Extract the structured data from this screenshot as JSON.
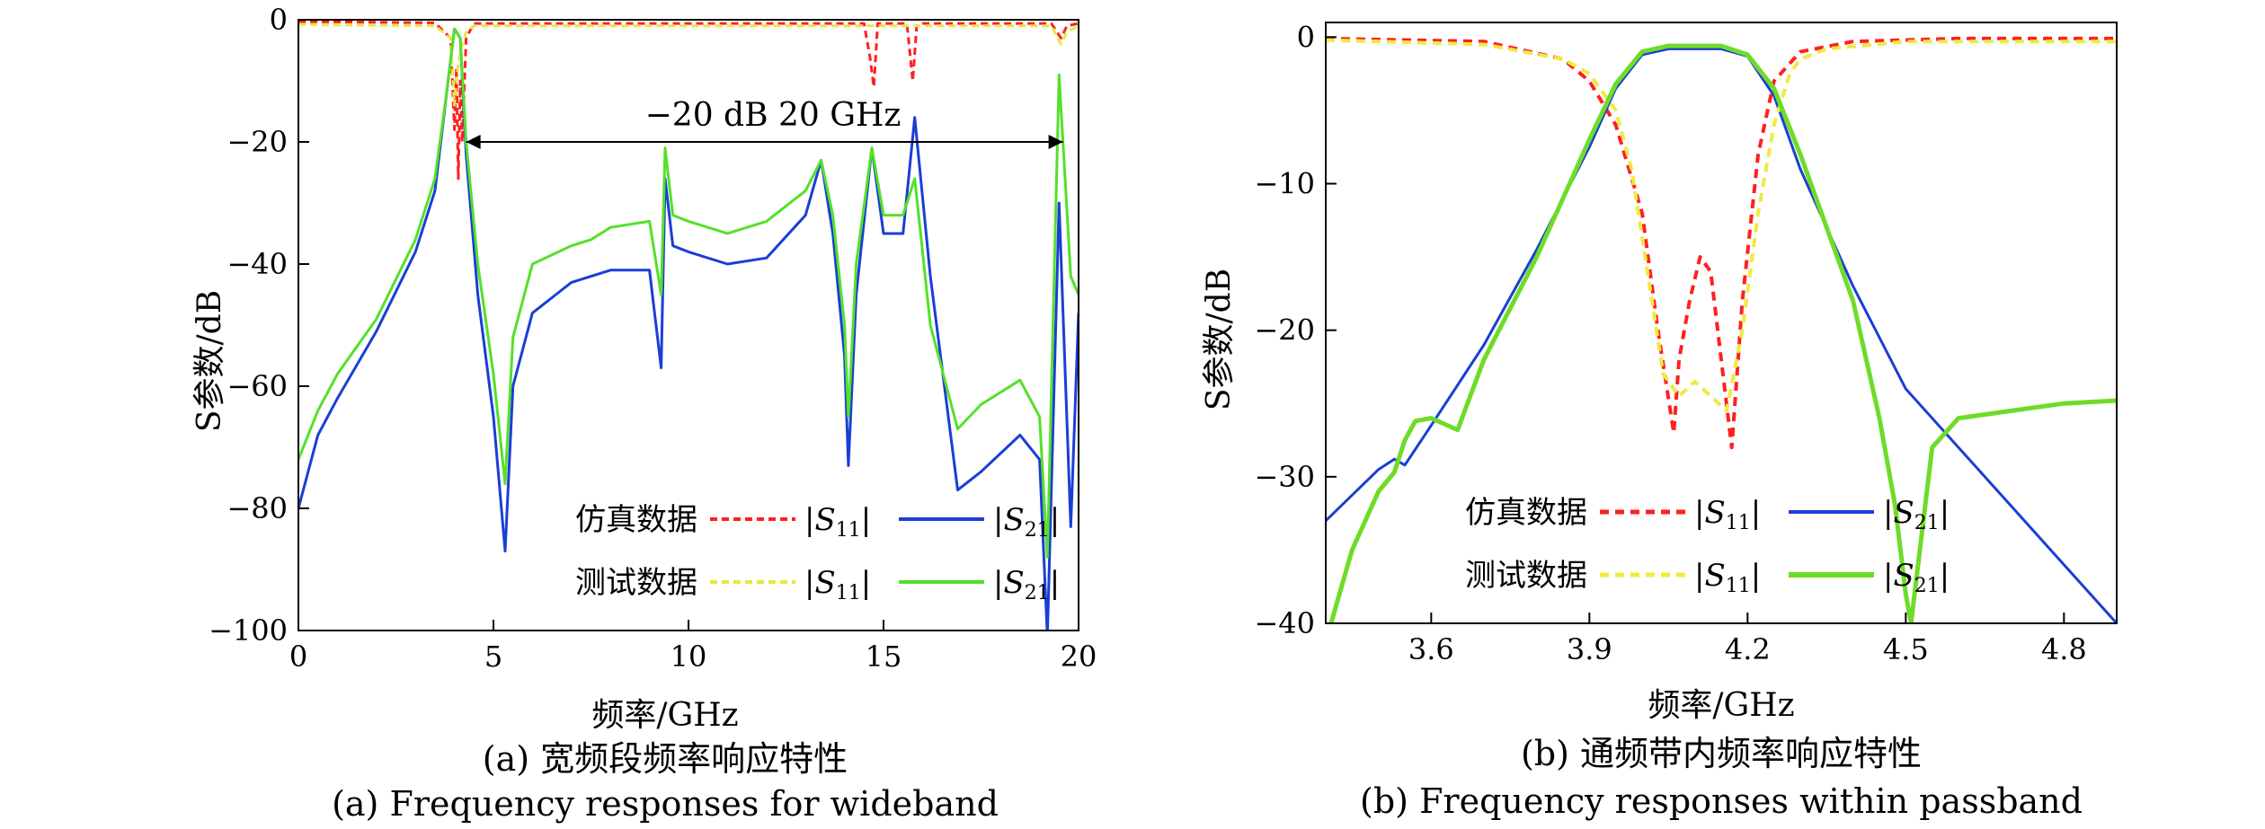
{
  "chart_data": [
    {
      "type": "line",
      "caption_cn": "(a) 宽频段频率响应特性",
      "caption_en": "(a) Frequency responses for wideband",
      "xlabel": "频率/GHz",
      "ylabel": "S参数/dB",
      "xlim": [
        0,
        20
      ],
      "ylim": [
        -100,
        0
      ],
      "xticks": [
        "0",
        "5",
        "10",
        "15",
        "20"
      ],
      "yticks": [
        "0",
        "−20",
        "−40",
        "−60",
        "−80",
        "−100"
      ],
      "annotation": "−20 dB 20 GHz",
      "annotation_range": [
        4.3,
        19.6
      ],
      "annotation_y": -20,
      "legend": {
        "row1_label": "仿真数据",
        "row2_label": "测试数据",
        "entries": [
          "|S11|",
          "|S21|"
        ]
      },
      "series": [
        {
          "group": "仿真数据",
          "param": "|S11|",
          "color": "#ff2020",
          "dash": "8,5",
          "width": 3,
          "x": [
            0,
            3.5,
            3.9,
            4.0,
            4.05,
            4.1,
            4.15,
            4.2,
            4.3,
            4.5,
            14.5,
            14.65,
            14.75,
            14.85,
            15.6,
            15.75,
            15.85,
            16.0,
            19.3,
            19.55,
            19.7,
            20
          ],
          "y": [
            -0.3,
            -0.5,
            -3,
            -18,
            -8,
            -26,
            -10,
            -20,
            -3,
            -0.6,
            -0.6,
            -6,
            -11,
            -0.6,
            -0.6,
            -10,
            -1,
            -0.6,
            -0.6,
            -3,
            -1,
            -0.6
          ]
        },
        {
          "group": "仿真数据",
          "param": "|S21|",
          "color": "#1a3ed6",
          "dash": "",
          "width": 3,
          "x": [
            0,
            0.5,
            1,
            2,
            3,
            3.5,
            3.8,
            4.0,
            4.15,
            4.3,
            4.6,
            5.0,
            5.3,
            5.5,
            6,
            7,
            8,
            9,
            9.3,
            9.4,
            9.6,
            10,
            11,
            12,
            13,
            13.4,
            13.7,
            14.0,
            14.1,
            14.3,
            14.7,
            15.0,
            15.5,
            15.8,
            16.2,
            16.9,
            17.5,
            18.5,
            19.0,
            19.2,
            19.5,
            19.8,
            20
          ],
          "y": [
            -80,
            -68,
            -62,
            -51,
            -38,
            -28,
            -12,
            -1.5,
            -3,
            -22,
            -45,
            -65,
            -87,
            -60,
            -48,
            -43,
            -41,
            -41,
            -57,
            -26,
            -37,
            -38,
            -40,
            -39,
            -32,
            -23,
            -35,
            -55,
            -73,
            -45,
            -21,
            -35,
            -35,
            -16,
            -42,
            -77,
            -74,
            -68,
            -72,
            -101,
            -30,
            -83,
            -48
          ]
        },
        {
          "group": "测试数据",
          "param": "|S11|",
          "color": "#e8e83a",
          "dash": "8,5",
          "width": 3,
          "x": [
            0,
            3.5,
            3.9,
            4.0,
            4.1,
            4.2,
            4.3,
            4.5,
            19.3,
            19.55,
            19.7,
            20
          ],
          "y": [
            -0.8,
            -1,
            -3,
            -14,
            -7,
            -4,
            -2,
            -1,
            -1,
            -4,
            -2,
            -1
          ]
        },
        {
          "group": "测试数据",
          "param": "|S21|",
          "color": "#55e02a",
          "dash": "",
          "width": 3,
          "x": [
            0,
            0.5,
            1,
            2,
            3,
            3.5,
            3.8,
            4.0,
            4.15,
            4.3,
            4.6,
            5.0,
            5.3,
            5.5,
            6,
            7,
            7.5,
            8,
            9,
            9.3,
            9.4,
            9.6,
            10,
            11,
            12,
            13,
            13.4,
            13.7,
            14.0,
            14.1,
            14.3,
            14.7,
            15.0,
            15.5,
            15.8,
            16.2,
            16.9,
            17.5,
            18.5,
            19.0,
            19.2,
            19.5,
            19.8,
            20
          ],
          "y": [
            -72,
            -64,
            -58,
            -49,
            -36,
            -26,
            -12,
            -1.5,
            -3,
            -20,
            -40,
            -58,
            -76,
            -52,
            -40,
            -37,
            -36,
            -34,
            -33,
            -45,
            -21,
            -32,
            -33,
            -35,
            -33,
            -28,
            -23,
            -32,
            -50,
            -65,
            -40,
            -21,
            -32,
            -32,
            -26,
            -50,
            -67,
            -63,
            -59,
            -65,
            -88,
            -9,
            -42,
            -45
          ]
        }
      ]
    },
    {
      "type": "line",
      "caption_cn": "(b) 通频带内频率响应特性",
      "caption_en": "(b) Frequency responses within passband",
      "xlabel": "频率/GHz",
      "ylabel": "S参数/dB",
      "xlim": [
        3.4,
        4.9
      ],
      "ylim": [
        -40,
        1
      ],
      "xticks": [
        "3.6",
        "3.9",
        "4.2",
        "4.5",
        "4.8"
      ],
      "xtick_values": [
        3.6,
        3.9,
        4.2,
        4.5,
        4.8
      ],
      "yticks": [
        "0",
        "−10",
        "−20",
        "−30",
        "−40"
      ],
      "ytick_values": [
        0,
        -10,
        -20,
        -30,
        -40
      ],
      "legend": {
        "row1_label": "仿真数据",
        "row2_label": "测试数据",
        "entries": [
          "|S11|",
          "|S21|"
        ]
      },
      "series": [
        {
          "group": "仿真数据",
          "param": "|S11|",
          "color": "#ff2020",
          "dash": "10,7",
          "width": 4,
          "x": [
            3.4,
            3.7,
            3.85,
            3.9,
            3.95,
            4.0,
            4.03,
            4.06,
            4.07,
            4.09,
            4.11,
            4.13,
            4.15,
            4.17,
            4.19,
            4.22,
            4.25,
            4.3,
            4.4,
            4.6,
            4.9
          ],
          "y": [
            -0.1,
            -0.3,
            -1.5,
            -3,
            -6,
            -12,
            -20,
            -27,
            -22,
            -18,
            -15,
            -16,
            -22,
            -28,
            -18,
            -8,
            -3,
            -1,
            -0.3,
            -0.1,
            -0.1
          ]
        },
        {
          "group": "仿真数据",
          "param": "|S21|",
          "color": "#1a3ed6",
          "dash": "",
          "width": 3,
          "x": [
            3.4,
            3.5,
            3.53,
            3.55,
            3.6,
            3.7,
            3.8,
            3.9,
            3.95,
            4.0,
            4.05,
            4.1,
            4.15,
            4.2,
            4.25,
            4.3,
            4.4,
            4.5,
            4.6,
            4.7,
            4.8,
            4.9
          ],
          "y": [
            -33,
            -29.5,
            -28.8,
            -29.2,
            -26.5,
            -21,
            -14.5,
            -7.5,
            -3.5,
            -1.2,
            -0.8,
            -0.8,
            -0.8,
            -1.3,
            -4,
            -9,
            -17,
            -24,
            -28,
            -32,
            -36,
            -40
          ]
        },
        {
          "group": "测试数据",
          "param": "|S11|",
          "color": "#f0ea40",
          "dash": "10,7",
          "width": 4,
          "x": [
            3.4,
            3.7,
            3.85,
            3.9,
            3.95,
            3.98,
            4.01,
            4.04,
            4.07,
            4.1,
            4.13,
            4.16,
            4.19,
            4.22,
            4.25,
            4.28,
            4.3,
            4.35,
            4.5,
            4.9
          ],
          "y": [
            -0.2,
            -0.5,
            -1.5,
            -2.5,
            -5,
            -9,
            -16,
            -23,
            -24.5,
            -23.5,
            -24.5,
            -25.5,
            -20,
            -12,
            -6,
            -2.5,
            -1.5,
            -0.8,
            -0.3,
            -0.3
          ]
        },
        {
          "group": "测试数据",
          "param": "|S21|",
          "color": "#6edc28",
          "dash": "",
          "width": 5,
          "x": [
            3.41,
            3.45,
            3.5,
            3.53,
            3.55,
            3.57,
            3.6,
            3.65,
            3.7,
            3.8,
            3.9,
            3.95,
            4.0,
            4.05,
            4.1,
            4.15,
            4.2,
            4.25,
            4.3,
            4.4,
            4.45,
            4.48,
            4.5,
            4.51,
            4.55,
            4.6,
            4.7,
            4.8,
            4.9
          ],
          "y": [
            -40,
            -35,
            -31,
            -29.7,
            -27.5,
            -26.2,
            -26,
            -26.8,
            -22,
            -15,
            -7,
            -3.2,
            -1,
            -0.6,
            -0.6,
            -0.6,
            -1.2,
            -3.5,
            -8,
            -18,
            -26,
            -32,
            -38,
            -40,
            -28,
            -26,
            -25.5,
            -25,
            -24.8
          ]
        }
      ]
    }
  ]
}
